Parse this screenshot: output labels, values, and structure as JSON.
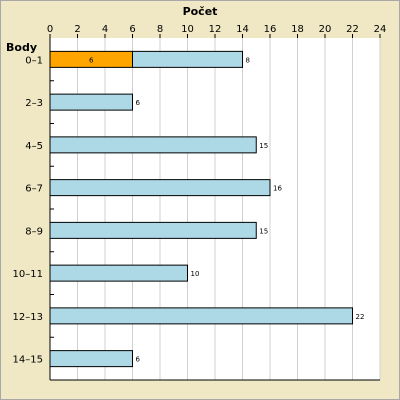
{
  "chart_data": {
    "type": "bar",
    "orientation": "horizontal",
    "title": "Počet",
    "ylabel": "Body",
    "categories": [
      "0–1",
      "2–3",
      "4–5",
      "6–7",
      "8–9",
      "10–11",
      "12–13",
      "14–15"
    ],
    "series": [
      {
        "values": [
          6,
          null,
          null,
          null,
          null,
          null,
          null,
          null
        ],
        "color": "#ffa500"
      },
      {
        "values": [
          8,
          6,
          15,
          16,
          15,
          10,
          22,
          6
        ],
        "color": "#add8e6"
      }
    ],
    "stacked": true,
    "xlim": [
      0,
      24
    ],
    "xticks": [
      0,
      2,
      4,
      6,
      8,
      10,
      12,
      14,
      16,
      18,
      20,
      22,
      24
    ],
    "grid": true,
    "colors": {
      "background": "#f0e8c4",
      "plot_background": "#ffffff",
      "grid": "#d0d0d0",
      "bar_outline": "#000000"
    }
  }
}
